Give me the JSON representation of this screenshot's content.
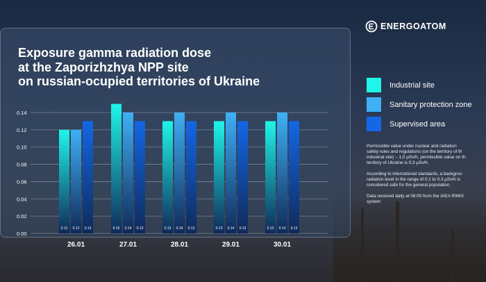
{
  "brand": {
    "name": "ENERGOATOM"
  },
  "title_lines": [
    "Exposure gamma radiation dose",
    "at the Zaporizhzhya NPP site",
    "on russian-ocupied territories of Ukraine"
  ],
  "legend": [
    {
      "label": "Industrial site",
      "color": "#1ff5e8"
    },
    {
      "label": "Sanitary protection zone",
      "color": "#3fb0f5"
    },
    {
      "label": "Supervised area",
      "color": "#1467e6"
    }
  ],
  "notes": [
    [
      "Permissible value under nuclear and radiation",
      "safety rules and regulations (on the territory of th",
      "industrial site) – 1,0 µSv/h, permissible value on th",
      "territory of Ukraine is 0,3 µSv/h."
    ],
    [
      "According to international standards, a backgrou",
      "radiation level in the range of 0.1 to 0.3 µSv/h is",
      "considered safe for the general population."
    ],
    [
      "Data received daily at 08:00 from the IAEA IRMIS",
      "system"
    ]
  ],
  "chart_data": {
    "type": "bar",
    "categories": [
      "26.01",
      "27.01",
      "28.01",
      "29.01",
      "30.01"
    ],
    "series": [
      {
        "name": "Industrial site",
        "values": [
          0.12,
          0.15,
          0.13,
          0.13,
          0.13
        ]
      },
      {
        "name": "Sanitary protection zone",
        "values": [
          0.12,
          0.14,
          0.14,
          0.14,
          0.14
        ]
      },
      {
        "name": "Supervised area",
        "values": [
          0.13,
          0.13,
          0.13,
          0.13,
          0.13
        ]
      }
    ],
    "data_labels": [
      [
        "0.12",
        "0.12",
        "0.13"
      ],
      [
        "0.15",
        "0.14",
        "0.13"
      ],
      [
        "0.13",
        "0.14",
        "0.13"
      ],
      [
        "0.13",
        "0.14",
        "0.13"
      ],
      [
        "0.13",
        "0.14",
        "0.13"
      ]
    ],
    "yticks": [
      "0.00",
      "0.02",
      "0.04",
      "0.06",
      "0.08",
      "0.10",
      "0.12",
      "0.14"
    ],
    "ylim": [
      0,
      0.15
    ],
    "grid": true
  }
}
